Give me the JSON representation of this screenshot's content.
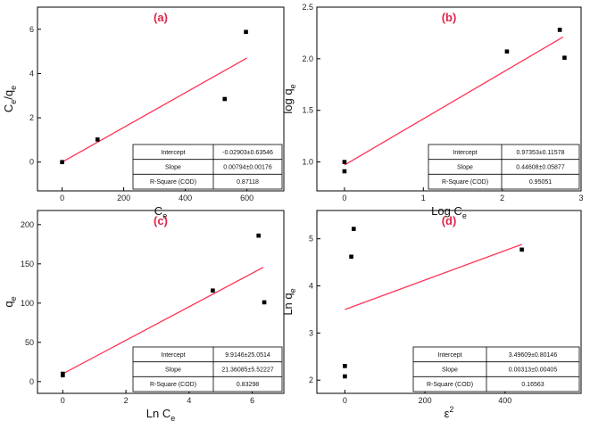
{
  "colors": {
    "fit_line": "#ff3355",
    "point": "#000000",
    "panel_label": "#e0254a",
    "axis": "#000000"
  },
  "chart_data": [
    {
      "type": "scatter",
      "panel_label": "(a)",
      "xlabel": {
        "base": "C",
        "sub": "e"
      },
      "ylabel": {
        "parts": [
          {
            "t": "C"
          },
          {
            "sub": "e"
          },
          {
            "t": "/q"
          },
          {
            "sub": "e"
          }
        ]
      },
      "xlim": [
        -80,
        720
      ],
      "ylim": [
        -1.3,
        7.0
      ],
      "xticks": [
        0,
        200,
        400,
        600
      ],
      "yticks": [
        0,
        2,
        4,
        6
      ],
      "points": [
        {
          "x": 0,
          "y": 0.0
        },
        {
          "x": 115,
          "y": 1.02
        },
        {
          "x": 528,
          "y": 2.85
        },
        {
          "x": 597,
          "y": 5.88
        }
      ],
      "fit_line": {
        "x": [
          0,
          600
        ],
        "y": [
          0.0,
          4.7
        ]
      },
      "table": [
        {
          "label": "Intercept",
          "value": "-0.02903±0.63546"
        },
        {
          "label": "Slope",
          "value": "0.00794±0.00176"
        },
        {
          "label": "R-Square (COD)",
          "value": "0.87118"
        }
      ]
    },
    {
      "type": "scatter",
      "panel_label": "(b)",
      "xlabel": {
        "base": "Log C",
        "sub": "e"
      },
      "ylabel": {
        "parts": [
          {
            "t": "log q"
          },
          {
            "sub": "e"
          }
        ]
      },
      "xlim": [
        -0.35,
        3.0
      ],
      "ylim": [
        0.72,
        2.5
      ],
      "xticks": [
        0,
        1,
        2,
        3
      ],
      "yticks": [
        1.0,
        1.5,
        2.0,
        2.5
      ],
      "ytick_labels": [
        "1.0",
        "1.5",
        "2.0",
        "2.5"
      ],
      "points": [
        {
          "x": 0,
          "y": 1.0
        },
        {
          "x": 0,
          "y": 0.91
        },
        {
          "x": 2.06,
          "y": 2.07
        },
        {
          "x": 2.73,
          "y": 2.28
        },
        {
          "x": 2.79,
          "y": 2.01
        }
      ],
      "fit_line": {
        "x": [
          0,
          2.77
        ],
        "y": [
          0.97,
          2.21
        ]
      },
      "table": [
        {
          "label": "Intercept",
          "value": "0.97353±0.11578"
        },
        {
          "label": "Slope",
          "value": "0.44608±0.05877"
        },
        {
          "label": "R-Square (COD)",
          "value": "0.95051"
        }
      ]
    },
    {
      "type": "scatter",
      "panel_label": "(c)",
      "xlabel": {
        "base": "Ln C",
        "sub": "e"
      },
      "ylabel": {
        "parts": [
          {
            "t": "q"
          },
          {
            "sub": "e"
          }
        ]
      },
      "xlim": [
        -0.8,
        7.0
      ],
      "ylim": [
        -15,
        218
      ],
      "xticks": [
        0,
        2,
        4,
        6
      ],
      "yticks": [
        0,
        50,
        100,
        150,
        200
      ],
      "points": [
        {
          "x": 0,
          "y": 10
        },
        {
          "x": 0,
          "y": 8
        },
        {
          "x": 4.75,
          "y": 116
        },
        {
          "x": 6.2,
          "y": 186
        },
        {
          "x": 6.38,
          "y": 101
        }
      ],
      "fit_line": {
        "x": [
          0,
          6.35
        ],
        "y": [
          9.9,
          145.6
        ]
      },
      "table": [
        {
          "label": "Intercept",
          "value": "9.9146±25.0514"
        },
        {
          "label": "Slope",
          "value": "21.36085±5.52227"
        },
        {
          "label": "R-Square (COD)",
          "value": "0.83298"
        }
      ]
    },
    {
      "type": "scatter",
      "panel_label": "(d)",
      "xlabel": {
        "base": "ε",
        "sup": "2"
      },
      "ylabel": {
        "parts": [
          {
            "t": "Ln q"
          },
          {
            "sub": "e"
          }
        ]
      },
      "xlim": [
        -70,
        590
      ],
      "ylim": [
        1.72,
        5.6
      ],
      "xticks": [
        0,
        200,
        400
      ],
      "yticks": [
        2,
        3,
        4,
        5
      ],
      "points": [
        {
          "x": 0,
          "y": 2.3
        },
        {
          "x": 0,
          "y": 2.08
        },
        {
          "x": 16,
          "y": 4.62
        },
        {
          "x": 22,
          "y": 5.21
        },
        {
          "x": 442,
          "y": 4.77
        }
      ],
      "fit_line": {
        "x": [
          0,
          442
        ],
        "y": [
          3.5,
          4.88
        ]
      },
      "table": [
        {
          "label": "Intercept",
          "value": "3.49609±0.80146"
        },
        {
          "label": "Slope",
          "value": "0.00313±0.00405"
        },
        {
          "label": "R-Square (COD)",
          "value": "0.16563"
        }
      ]
    }
  ]
}
